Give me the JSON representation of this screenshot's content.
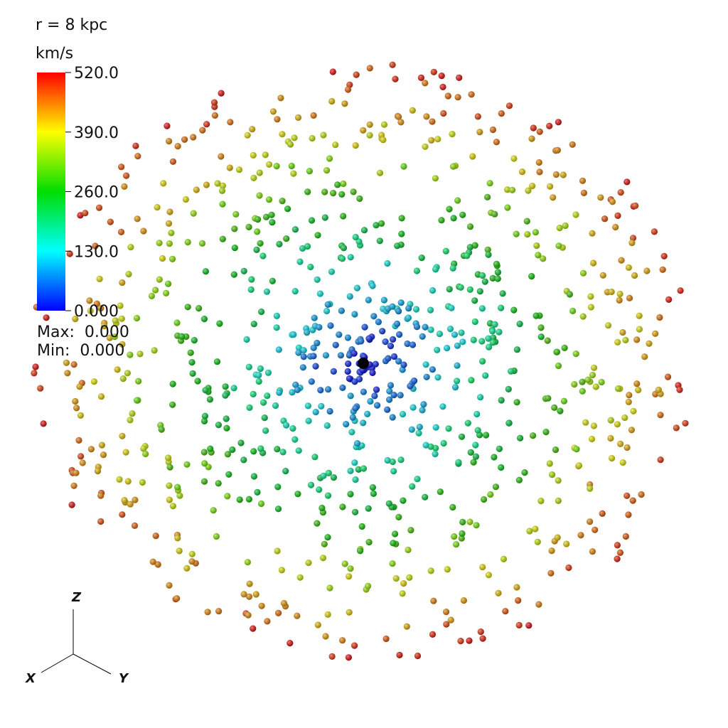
{
  "view": {
    "label": "r = 8 kpc",
    "colorbar": {
      "title": "km/s",
      "range": [
        0,
        520
      ],
      "ticks": [
        {
          "value": 0,
          "label": "0.000"
        },
        {
          "value": 130,
          "label": "130.0"
        },
        {
          "value": 260,
          "label": "260.0"
        },
        {
          "value": 390,
          "label": "390.0"
        },
        {
          "value": 520,
          "label": "520.0"
        }
      ],
      "max_text": "Max:  0.000",
      "min_text": "Min:  0.000"
    },
    "axes": {
      "x": "X",
      "y": "Y",
      "z": "Z"
    }
  }
}
